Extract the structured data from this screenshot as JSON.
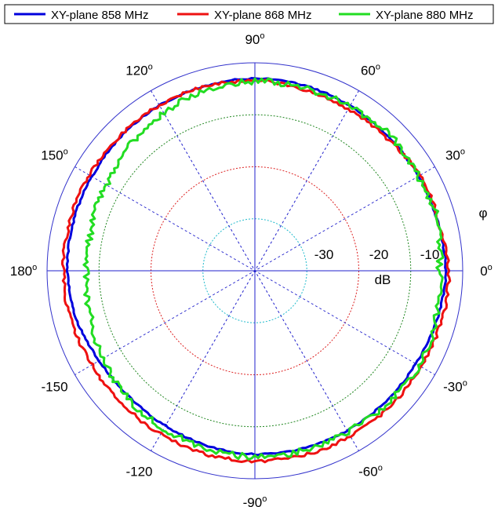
{
  "chart_data": {
    "type": "polar-line",
    "title": "",
    "angular_unit": "deg",
    "radial_unit_label": "dB",
    "angle_symbol": "φ",
    "radial_range_db": [
      -40,
      0
    ],
    "radial_rings_db": [
      -30,
      -20,
      -10
    ],
    "radial_ring_labels": [
      "-30",
      "-20",
      "-10"
    ],
    "angle_labels": [
      {
        "angle": 0,
        "value": "0",
        "degree_mark": "o"
      },
      {
        "angle": 30,
        "value": "30",
        "degree_mark": "o"
      },
      {
        "angle": 60,
        "value": "60",
        "degree_mark": "o"
      },
      {
        "angle": 90,
        "value": "90",
        "degree_mark": "o"
      },
      {
        "angle": 120,
        "value": "120",
        "degree_mark": "o"
      },
      {
        "angle": 150,
        "value": "150",
        "degree_mark": "o"
      },
      {
        "angle": 180,
        "value": "180",
        "degree_mark": "o"
      },
      {
        "angle": -150,
        "value": "-150",
        "degree_mark": ""
      },
      {
        "angle": -120,
        "value": "-120",
        "degree_mark": ""
      },
      {
        "angle": -90,
        "value": "-90",
        "degree_mark": "o"
      },
      {
        "angle": -60,
        "value": "-60",
        "degree_mark": "o"
      },
      {
        "angle": -30,
        "value": "-30",
        "degree_mark": "o"
      }
    ],
    "legend_position": "top",
    "grid_colors": {
      "outer": "#3333cc",
      "ring_-10": "#228822",
      "ring_-20": "#dd2222",
      "ring_-30": "#22bbcc",
      "spokes": "#2222cc"
    },
    "series": [
      {
        "name": "XY-plane 858 MHz",
        "color": "#0000dd",
        "angles": [
          0,
          15,
          30,
          45,
          60,
          75,
          90,
          105,
          120,
          135,
          150,
          165,
          180,
          195,
          210,
          225,
          240,
          255,
          270,
          285,
          300,
          315,
          330,
          345
        ],
        "values": [
          -3.2,
          -3.6,
          -3.6,
          -3.7,
          -3.4,
          -3.1,
          -3.0,
          -3.2,
          -3.3,
          -3.5,
          -3.8,
          -3.8,
          -3.9,
          -4.4,
          -5.4,
          -5.8,
          -5.6,
          -5.1,
          -4.7,
          -4.6,
          -4.5,
          -4.4,
          -4.3,
          -3.7
        ],
        "noise": 0.15
      },
      {
        "name": "XY-plane 868 MHz",
        "color": "#ee1111",
        "angles": [
          0,
          15,
          30,
          45,
          60,
          75,
          90,
          105,
          120,
          135,
          150,
          165,
          180,
          195,
          210,
          225,
          240,
          255,
          270,
          285,
          300,
          315,
          330,
          345
        ],
        "values": [
          -2.6,
          -3.4,
          -3.2,
          -4.1,
          -4.1,
          -3.9,
          -3.4,
          -3.3,
          -3.3,
          -3.3,
          -3.2,
          -3.1,
          -3.1,
          -3.3,
          -3.8,
          -3.9,
          -3.7,
          -3.5,
          -3.4,
          -3.3,
          -3.3,
          -3.2,
          -3.1,
          -2.8
        ],
        "noise": 0.3
      },
      {
        "name": "XY-plane 880 MHz",
        "color": "#22dd22",
        "angles": [
          0,
          15,
          30,
          45,
          60,
          75,
          90,
          105,
          120,
          135,
          150,
          165,
          180,
          195,
          210,
          225,
          240,
          255,
          270,
          285,
          300,
          315,
          330,
          345
        ],
        "values": [
          -4.5,
          -3.5,
          -3.7,
          -3.2,
          -3.5,
          -3.6,
          -3.5,
          -4.0,
          -5.0,
          -6.0,
          -7.0,
          -7.5,
          -7.6,
          -7.2,
          -6.2,
          -5.4,
          -5.0,
          -4.5,
          -4.2,
          -4.2,
          -4.3,
          -4.0,
          -3.4,
          -4.0
        ],
        "noise": 0.6
      }
    ]
  }
}
